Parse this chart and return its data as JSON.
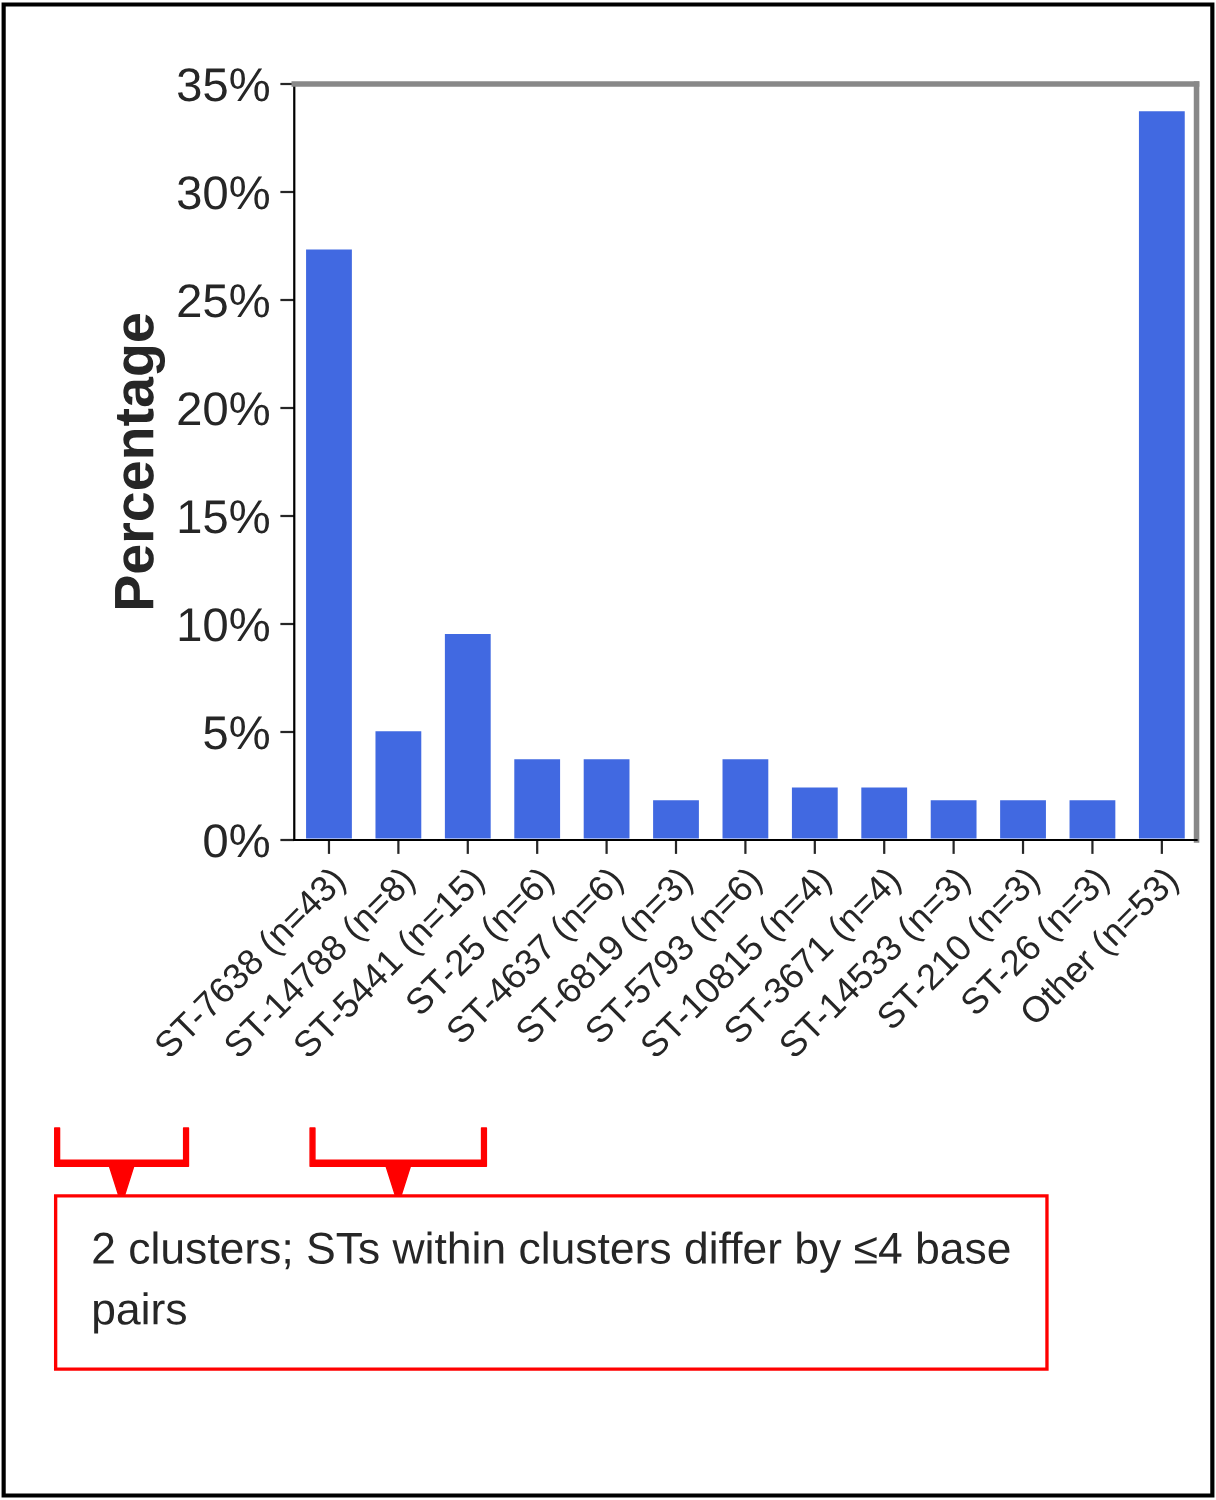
{
  "chart_data": {
    "type": "bar",
    "ylabel": "Percentage",
    "categories": [
      "ST-7638 (n=43)",
      "ST-14788 (n=8)",
      "ST-5441 (n=15)",
      "ST-25 (n=6)",
      "ST-4637 (n=6)",
      "ST-6819 (n=3)",
      "ST-5793 (n=6)",
      "ST-10815 (n=4)",
      "ST-3671 (n=4)",
      "ST-14533 (n=3)",
      "ST-210 (n=3)",
      "ST-26 (n=3)",
      "Other (n=53)"
    ],
    "values": [
      27.4,
      5.1,
      9.6,
      3.8,
      3.8,
      1.9,
      3.8,
      2.5,
      2.5,
      1.9,
      1.9,
      1.9,
      33.8
    ],
    "color": "#4169e1",
    "ylim": [
      0,
      35
    ],
    "yticks": [
      {
        "value": 0,
        "label": "0%"
      },
      {
        "value": 5,
        "label": "5%"
      },
      {
        "value": 10,
        "label": "10%"
      },
      {
        "value": 15,
        "label": "15%"
      },
      {
        "value": 20,
        "label": "20%"
      },
      {
        "value": 25,
        "label": "25%"
      },
      {
        "value": 30,
        "label": "30%"
      },
      {
        "value": 35,
        "label": "35%"
      }
    ],
    "grid": false,
    "annotations": [
      "2 clusters; STs within clusters differ by ≤4 base pairs"
    ]
  }
}
